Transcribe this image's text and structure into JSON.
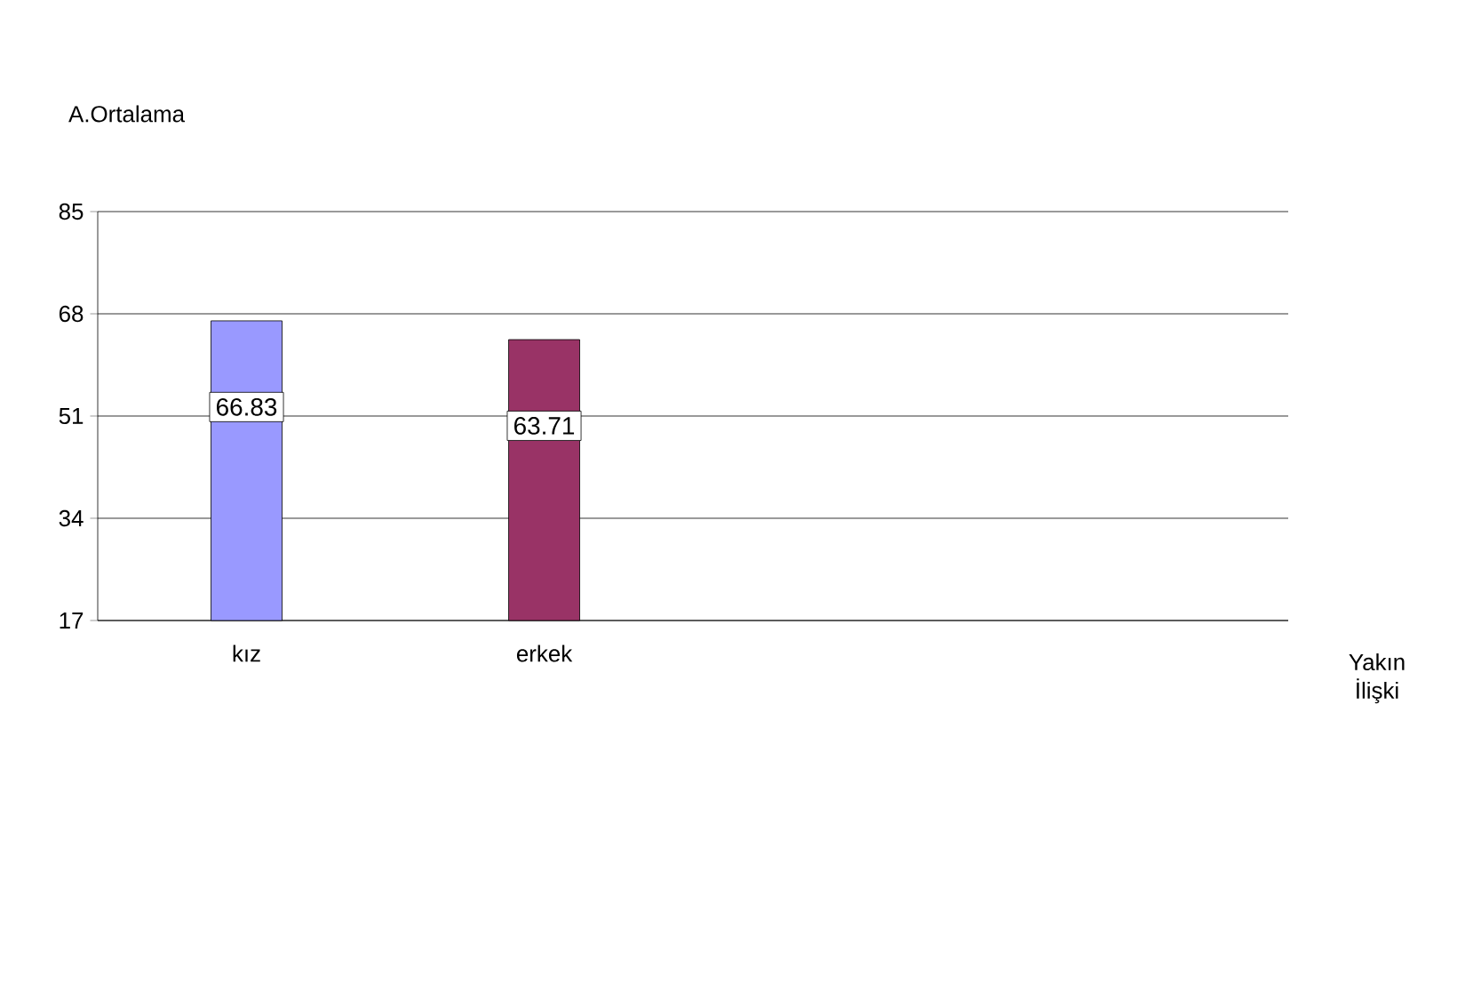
{
  "chart_data": {
    "type": "bar",
    "ylabel": "A.Ortalama",
    "annotations": [
      "Yakın İlişki"
    ],
    "categories": [
      "kız",
      "erkek"
    ],
    "values": [
      66.83,
      63.71
    ],
    "colors": [
      "#9999ff",
      "#993366"
    ],
    "ylim": [
      17,
      85
    ],
    "yticks": [
      17,
      34,
      51,
      68,
      85
    ],
    "grid": "y",
    "data_labels": true
  }
}
